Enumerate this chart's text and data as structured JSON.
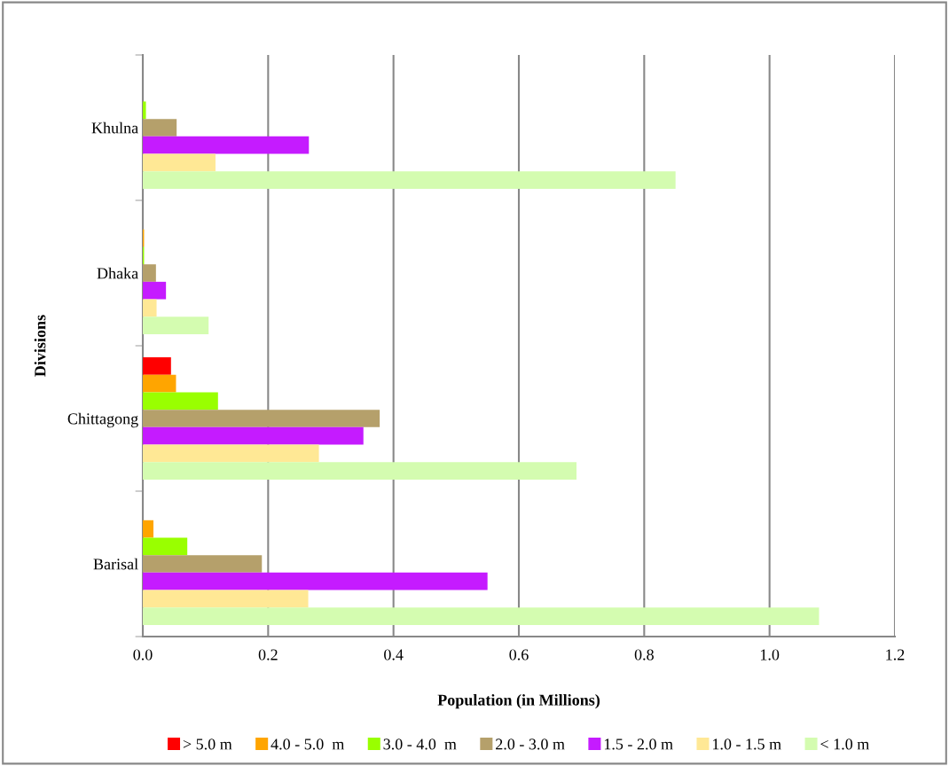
{
  "chart_data": {
    "type": "bar",
    "orientation": "horizontal",
    "xlabel": "Population (in Millions)",
    "ylabel": "Divisions",
    "categories": [
      "Khulna",
      "Dhaka",
      "Chittagong",
      "Barisal"
    ],
    "series": [
      {
        "name": "> 5.0 m",
        "color": "#ff0000",
        "values": [
          null,
          null,
          0.045,
          null
        ]
      },
      {
        "name": "4.0 - 5.0  m",
        "color": "#ffa500",
        "values": [
          null,
          0.002,
          0.053,
          0.017
        ]
      },
      {
        "name": "3.0 - 4.0  m",
        "color": "#99ff00",
        "values": [
          0.005,
          0.002,
          0.12,
          0.071
        ]
      },
      {
        "name": "2.0 - 3.0 m",
        "color": "#b5a06b",
        "values": [
          0.054,
          0.021,
          0.378,
          0.19
        ]
      },
      {
        "name": "1.5 - 2.0 m",
        "color": "#c51bff",
        "values": [
          0.265,
          0.037,
          0.352,
          0.55
        ]
      },
      {
        "name": "1.0 - 1.5 m",
        "color": "#ffe895",
        "values": [
          0.116,
          0.022,
          0.281,
          0.264
        ]
      },
      {
        "name": "< 1.0 m",
        "color": "#d4fcb0",
        "values": [
          0.85,
          0.105,
          0.692,
          1.079
        ]
      }
    ],
    "xlim": [
      0,
      1.2
    ],
    "xticks": [
      {
        "value": 0,
        "label": "0.0"
      },
      {
        "value": 0.2,
        "label": "0.2"
      },
      {
        "value": 0.4,
        "label": "0.4"
      },
      {
        "value": 0.6,
        "label": "0.6"
      },
      {
        "value": 0.8,
        "label": "0.8"
      },
      {
        "value": 1.0,
        "label": "1.0"
      },
      {
        "value": 1.2,
        "label": "1.2"
      }
    ],
    "grid": "x",
    "legend": "bottom"
  }
}
